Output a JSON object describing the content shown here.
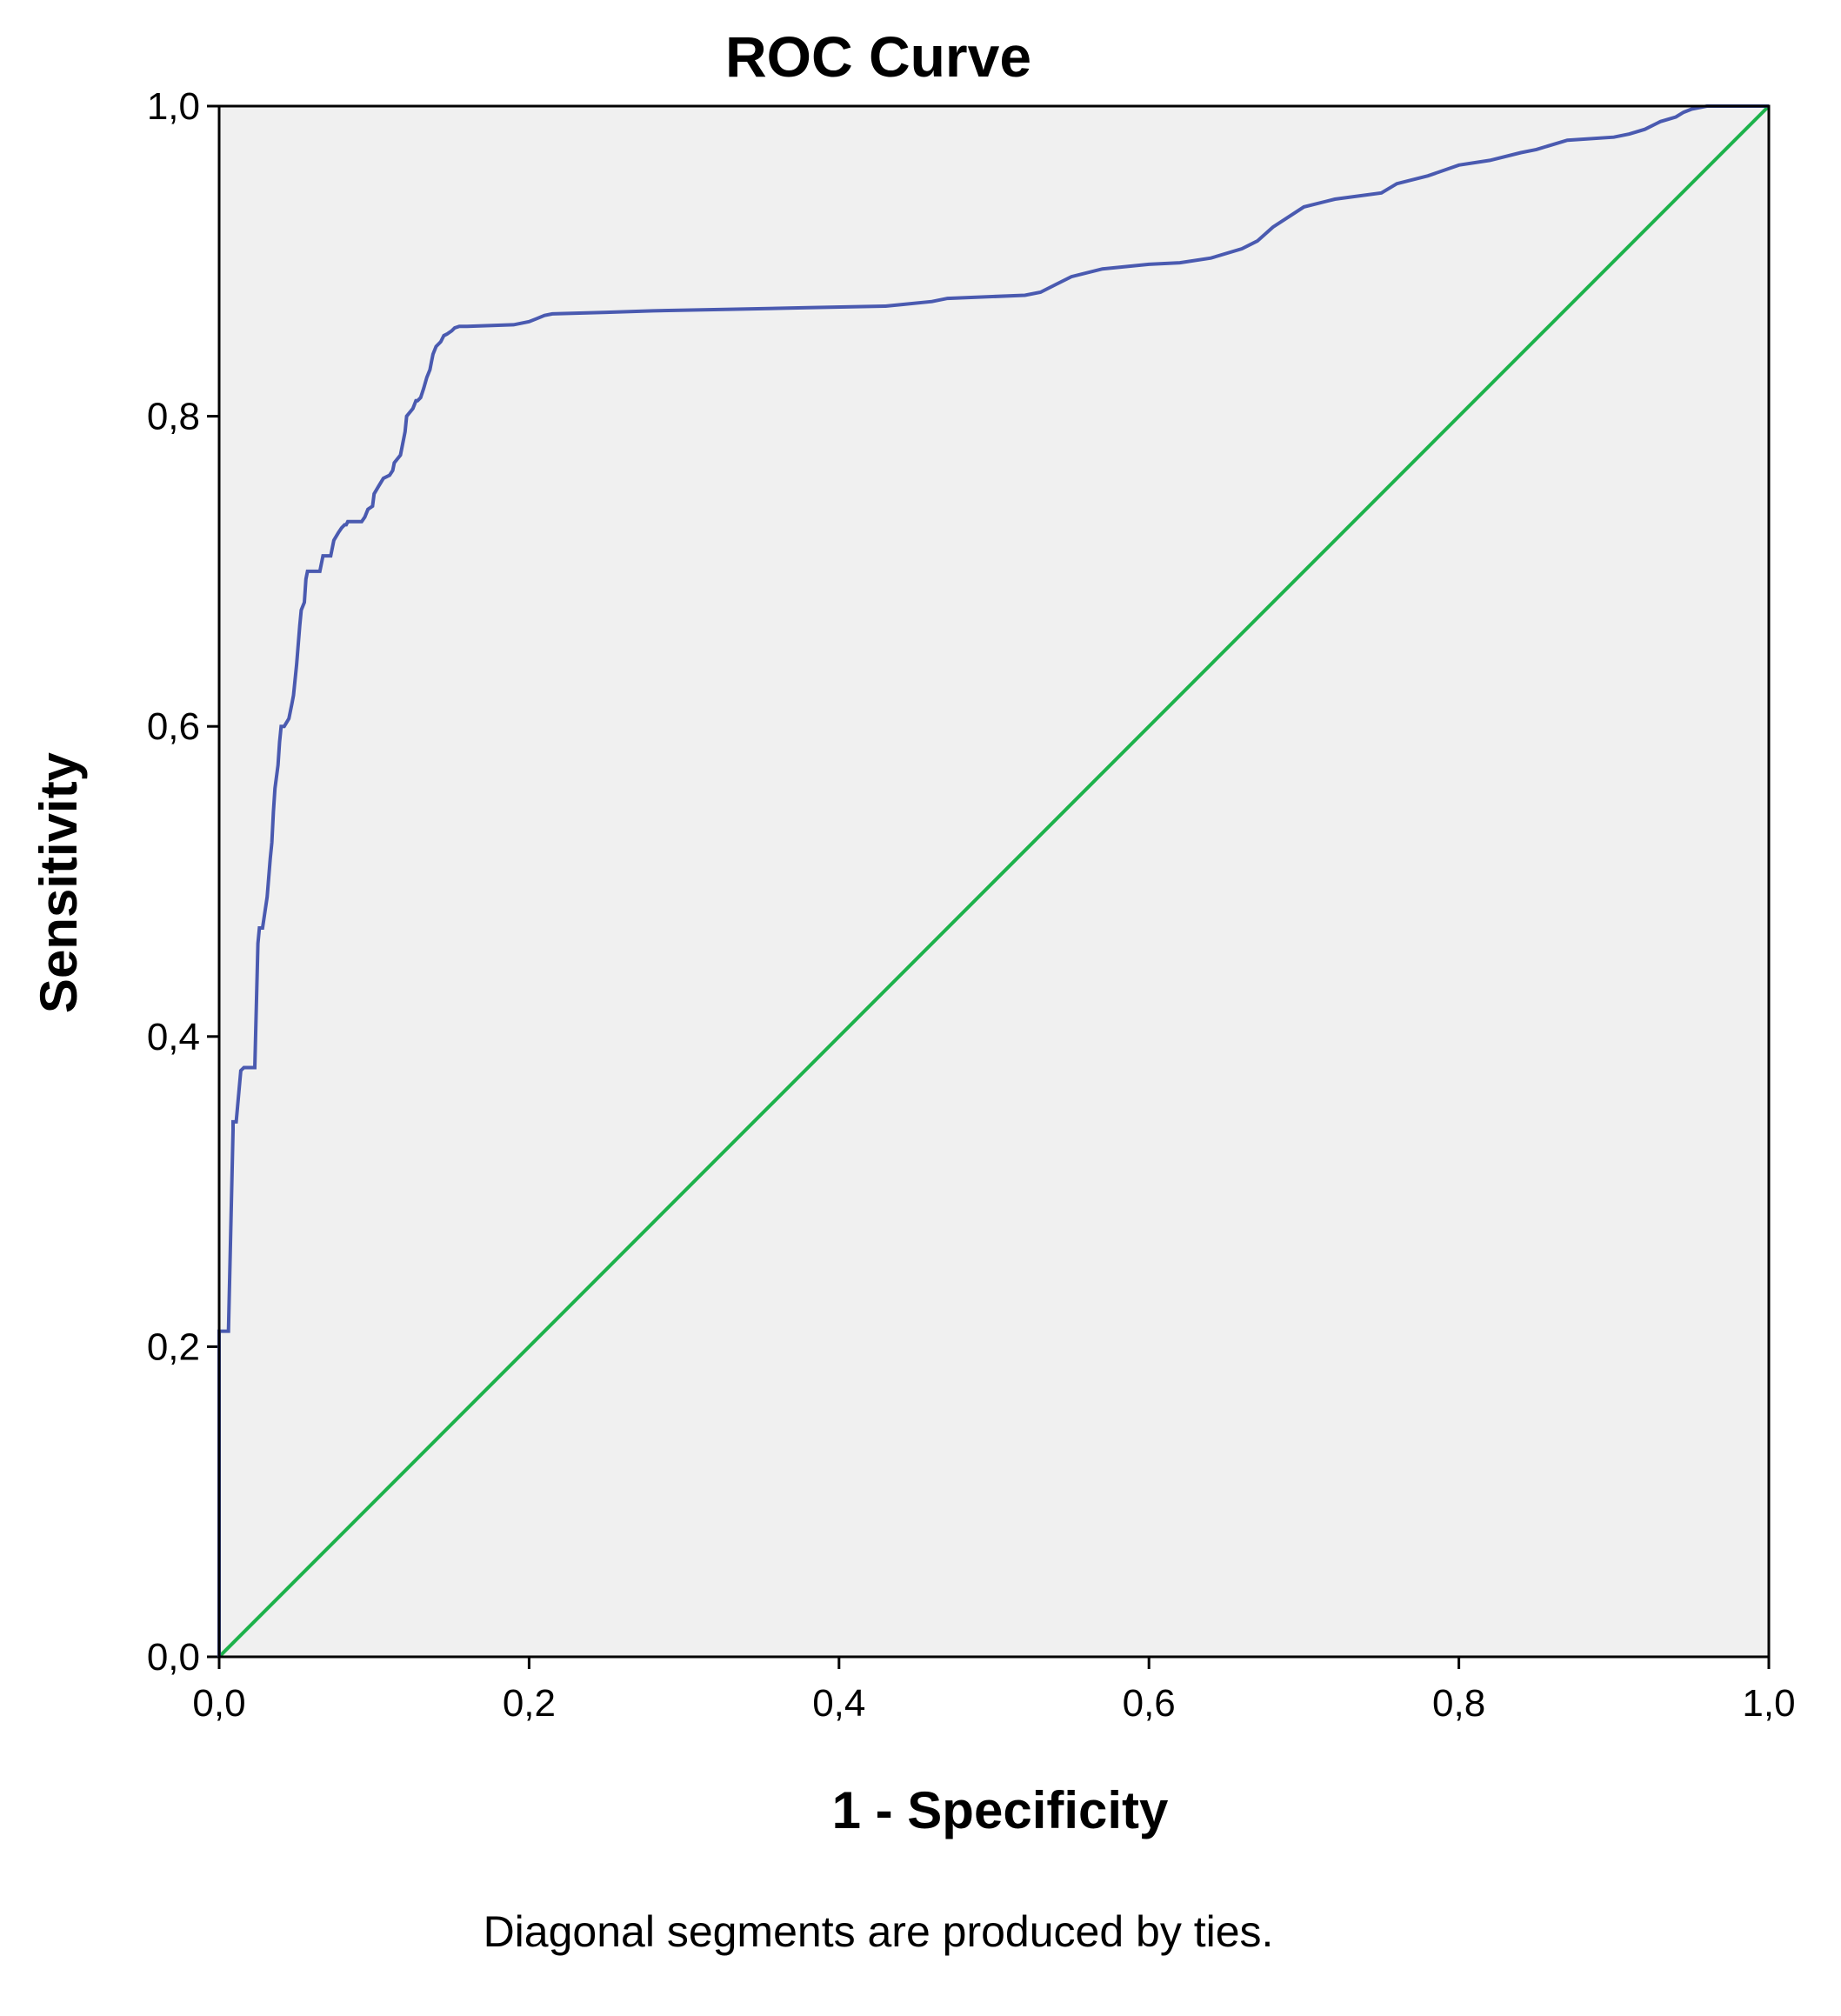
{
  "chart_data": {
    "type": "line",
    "title": "ROC Curve",
    "xlabel": "1 - Specificity",
    "ylabel": "Sensitivity",
    "xlim": [
      0,
      1
    ],
    "ylim": [
      0,
      1
    ],
    "x_ticks": [
      "0,0",
      "0,2",
      "0,4",
      "0,6",
      "0,8",
      "1,0"
    ],
    "y_ticks": [
      "0,0",
      "0,2",
      "0,4",
      "0,6",
      "0,8",
      "1,0"
    ],
    "grid": false,
    "legend": "none",
    "background_color": "#f0f0f0",
    "footnote": "Diagonal segments are produced by ties.",
    "series": [
      {
        "color": "#4a5ab0",
        "x": [
          0,
          0,
          0.003,
          0.006,
          0.009,
          0.009,
          0.011,
          0.014,
          0.016,
          0.018,
          0.023,
          0.025,
          0.026,
          0.028,
          0.031,
          0.033,
          0.034,
          0.035,
          0.036,
          0.038,
          0.039,
          0.04,
          0.041,
          0.042,
          0.045,
          0.047,
          0.048,
          0.05,
          0.052,
          0.053,
          0.055,
          0.056,
          0.057,
          0.059,
          0.065,
          0.067,
          0.072,
          0.074,
          0.077,
          0.079,
          0.081,
          0.082,
          0.083,
          0.085,
          0.092,
          0.094,
          0.096,
          0.099,
          0.1,
          0.103,
          0.106,
          0.11,
          0.112,
          0.113,
          0.117,
          0.12,
          0.121,
          0.125,
          0.127,
          0.128,
          0.13,
          0.132,
          0.134,
          0.136,
          0.137,
          0.138,
          0.14,
          0.143,
          0.145,
          0.147,
          0.15,
          0.152,
          0.155,
          0.16,
          0.19,
          0.2,
          0.205,
          0.21,
          0.215,
          0.25,
          0.28,
          0.33,
          0.38,
          0.43,
          0.44,
          0.46,
          0.47,
          0.52,
          0.53,
          0.54,
          0.55,
          0.57,
          0.6,
          0.62,
          0.64,
          0.66,
          0.67,
          0.68,
          0.7,
          0.72,
          0.75,
          0.76,
          0.78,
          0.8,
          0.82,
          0.84,
          0.85,
          0.87,
          0.9,
          0.91,
          0.92,
          0.93,
          0.94,
          0.945,
          0.95,
          0.96,
          1
        ],
        "y": [
          0,
          0.21,
          0.21,
          0.21,
          0.34,
          0.345,
          0.345,
          0.378,
          0.38,
          0.38,
          0.38,
          0.46,
          0.47,
          0.47,
          0.49,
          0.515,
          0.525,
          0.545,
          0.56,
          0.575,
          0.59,
          0.6,
          0.6,
          0.6,
          0.605,
          0.615,
          0.62,
          0.64,
          0.665,
          0.675,
          0.68,
          0.695,
          0.7,
          0.7,
          0.7,
          0.71,
          0.71,
          0.72,
          0.725,
          0.728,
          0.73,
          0.73,
          0.732,
          0.732,
          0.732,
          0.735,
          0.74,
          0.742,
          0.75,
          0.755,
          0.76,
          0.762,
          0.765,
          0.77,
          0.775,
          0.79,
          0.8,
          0.805,
          0.81,
          0.81,
          0.812,
          0.818,
          0.825,
          0.83,
          0.835,
          0.84,
          0.845,
          0.848,
          0.852,
          0.853,
          0.855,
          0.857,
          0.858,
          0.858,
          0.859,
          0.861,
          0.863,
          0.865,
          0.866,
          0.867,
          0.868,
          0.869,
          0.87,
          0.871,
          0.872,
          0.874,
          0.876,
          0.878,
          0.88,
          0.885,
          0.89,
          0.895,
          0.898,
          0.899,
          0.902,
          0.908,
          0.913,
          0.922,
          0.935,
          0.94,
          0.944,
          0.95,
          0.955,
          0.962,
          0.965,
          0.97,
          0.972,
          0.978,
          0.98,
          0.982,
          0.985,
          0.99,
          0.993,
          0.996,
          0.998,
          1,
          1
        ]
      },
      {
        "color": "#1db24b",
        "x": [
          0,
          1
        ],
        "y": [
          0,
          1
        ]
      }
    ]
  }
}
